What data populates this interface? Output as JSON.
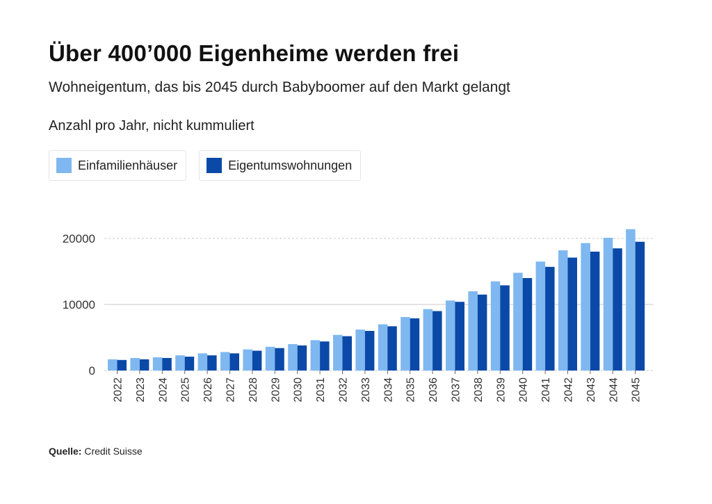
{
  "header": {
    "title": "Über 400’000 Eigenheime werden frei",
    "subtitle": "Wohneigentum, das bis 2045 durch Babyboomer auf den Markt gelangt",
    "note": "Anzahl pro Jahr, nicht kummuliert"
  },
  "footer": {
    "source_label": "Quelle:",
    "source_text": "Credit Suisse"
  },
  "colors": {
    "light_blue": "#7fb8f0",
    "dark_blue": "#0a49a8",
    "gridline": "#c8c8c8",
    "axis_text": "#333333"
  },
  "chart_data": {
    "type": "bar",
    "title": "Über 400’000 Eigenheime werden frei",
    "subtitle": "Wohneigentum, das bis 2045 durch Babyboomer auf den Markt gelangt",
    "ylabel": "Anzahl pro Jahr, nicht kummuliert",
    "xlabel": "",
    "ylim": [
      0,
      22500
    ],
    "yticks": [
      0,
      10000,
      20000
    ],
    "grid": true,
    "legend_position": "top-left",
    "categories": [
      "2022",
      "2023",
      "2024",
      "2025",
      "2026",
      "2027",
      "2028",
      "2029",
      "2030",
      "2031",
      "2032",
      "2033",
      "2034",
      "2035",
      "2036",
      "2037",
      "2038",
      "2039",
      "2040",
      "2041",
      "2042",
      "2043",
      "2044",
      "2045"
    ],
    "series": [
      {
        "name": "Einfamilienhäuser",
        "color": "#7fb8f0",
        "values": [
          1700,
          1900,
          2000,
          2300,
          2600,
          2800,
          3200,
          3600,
          4000,
          4600,
          5400,
          6200,
          7000,
          8100,
          9300,
          10600,
          12000,
          13500,
          14800,
          16500,
          18200,
          19300,
          20100,
          21400
        ]
      },
      {
        "name": "Eigentumswohnungen",
        "color": "#0a49a8",
        "values": [
          1600,
          1700,
          1900,
          2100,
          2300,
          2600,
          3000,
          3400,
          3800,
          4400,
          5200,
          6000,
          6700,
          7900,
          9000,
          10400,
          11500,
          12900,
          14000,
          15700,
          17100,
          18000,
          18500,
          19500
        ]
      }
    ]
  }
}
